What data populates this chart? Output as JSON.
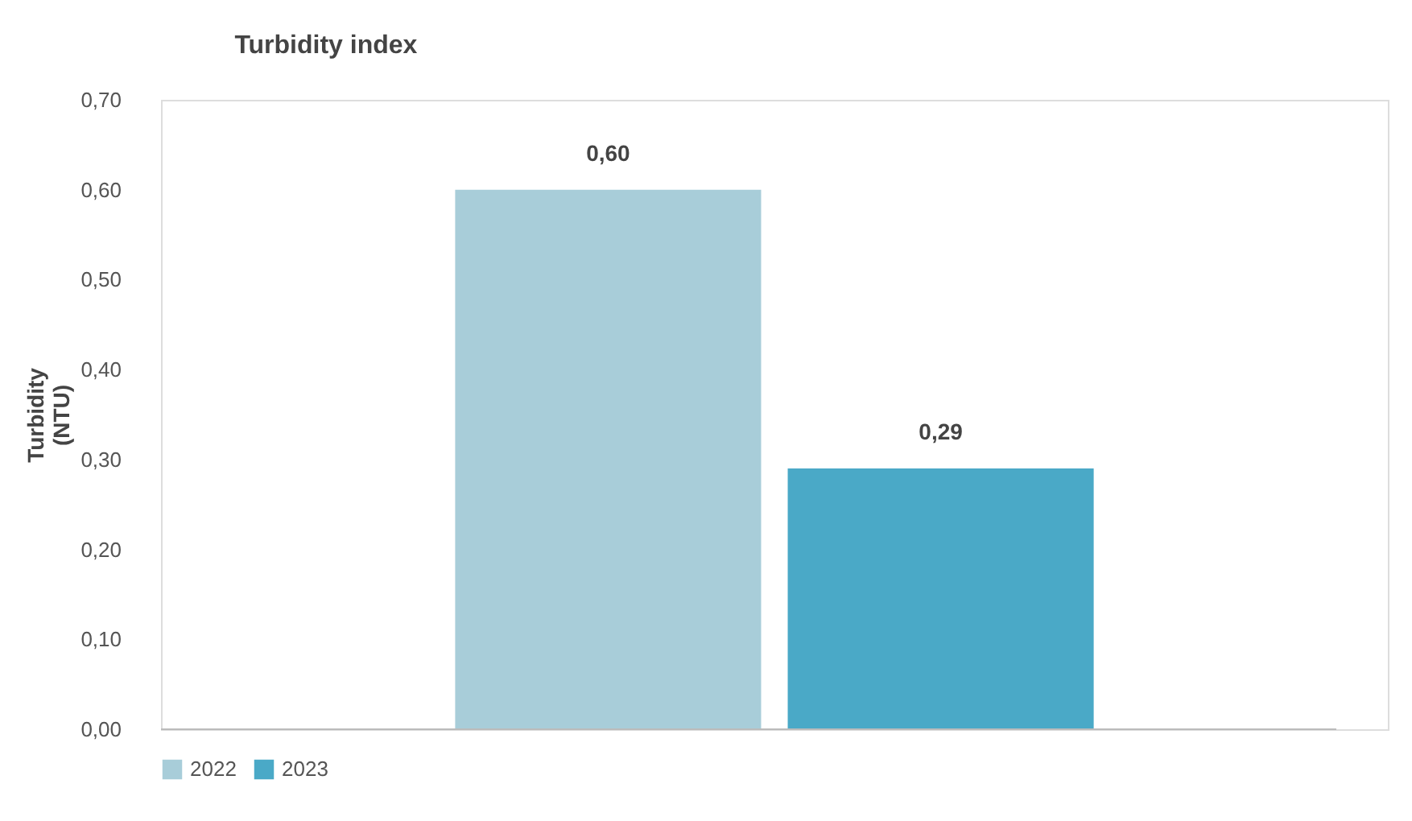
{
  "chart_data": {
    "type": "bar",
    "title": "Turbidity index",
    "ylabel": "Turbidity (NTU)",
    "categories": [
      null
    ],
    "series": [
      {
        "name": "2022",
        "color": "#a8cdd9",
        "values": [
          0.6
        ],
        "value_labels": [
          "0,60"
        ]
      },
      {
        "name": "2023",
        "color": "#4aa9c7",
        "values": [
          0.29
        ],
        "value_labels": [
          "0,29"
        ]
      }
    ],
    "ylim": [
      0,
      0.7
    ],
    "yticks": [
      {
        "value": 0,
        "label": "0,00"
      },
      {
        "value": 0.1,
        "label": "0,10"
      },
      {
        "value": 0.2,
        "label": "0,20"
      },
      {
        "value": 0.3,
        "label": "0,30"
      },
      {
        "value": 0.4,
        "label": "0,40"
      },
      {
        "value": 0.5,
        "label": "0,50"
      },
      {
        "value": 0.6,
        "label": "0,60"
      },
      {
        "value": 0.7,
        "label": "0,70"
      }
    ],
    "grid": false,
    "legend": "bottom"
  }
}
